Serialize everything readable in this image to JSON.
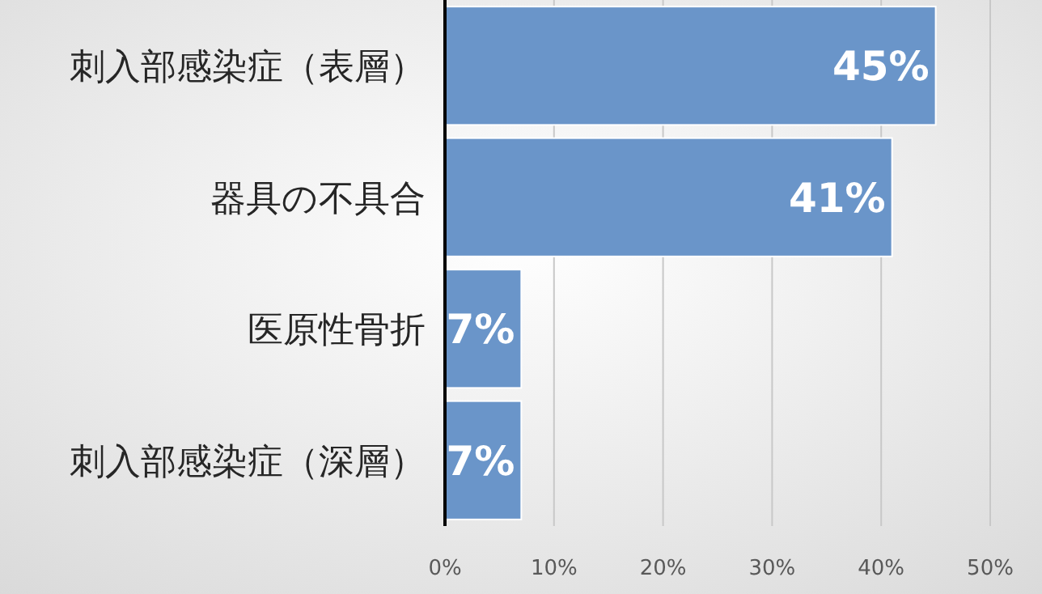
{
  "chart_data": {
    "type": "bar",
    "orientation": "horizontal",
    "categories": [
      "刺入部感染症（表層）",
      "器具の不具合",
      "医原性骨折",
      "刺入部感染症（深層）"
    ],
    "values": [
      45,
      41,
      7,
      7
    ],
    "value_labels": [
      "45%",
      "41%",
      "7%",
      "7%"
    ],
    "color": "#6a95c9",
    "xlim": [
      0,
      50
    ],
    "xticks": [
      {
        "value": 0,
        "label": "0%"
      },
      {
        "value": 10,
        "label": "10%"
      },
      {
        "value": 20,
        "label": "20%"
      },
      {
        "value": 30,
        "label": "30%"
      },
      {
        "value": 40,
        "label": "40%"
      },
      {
        "value": 50,
        "label": "50%"
      }
    ],
    "grid": "x"
  }
}
